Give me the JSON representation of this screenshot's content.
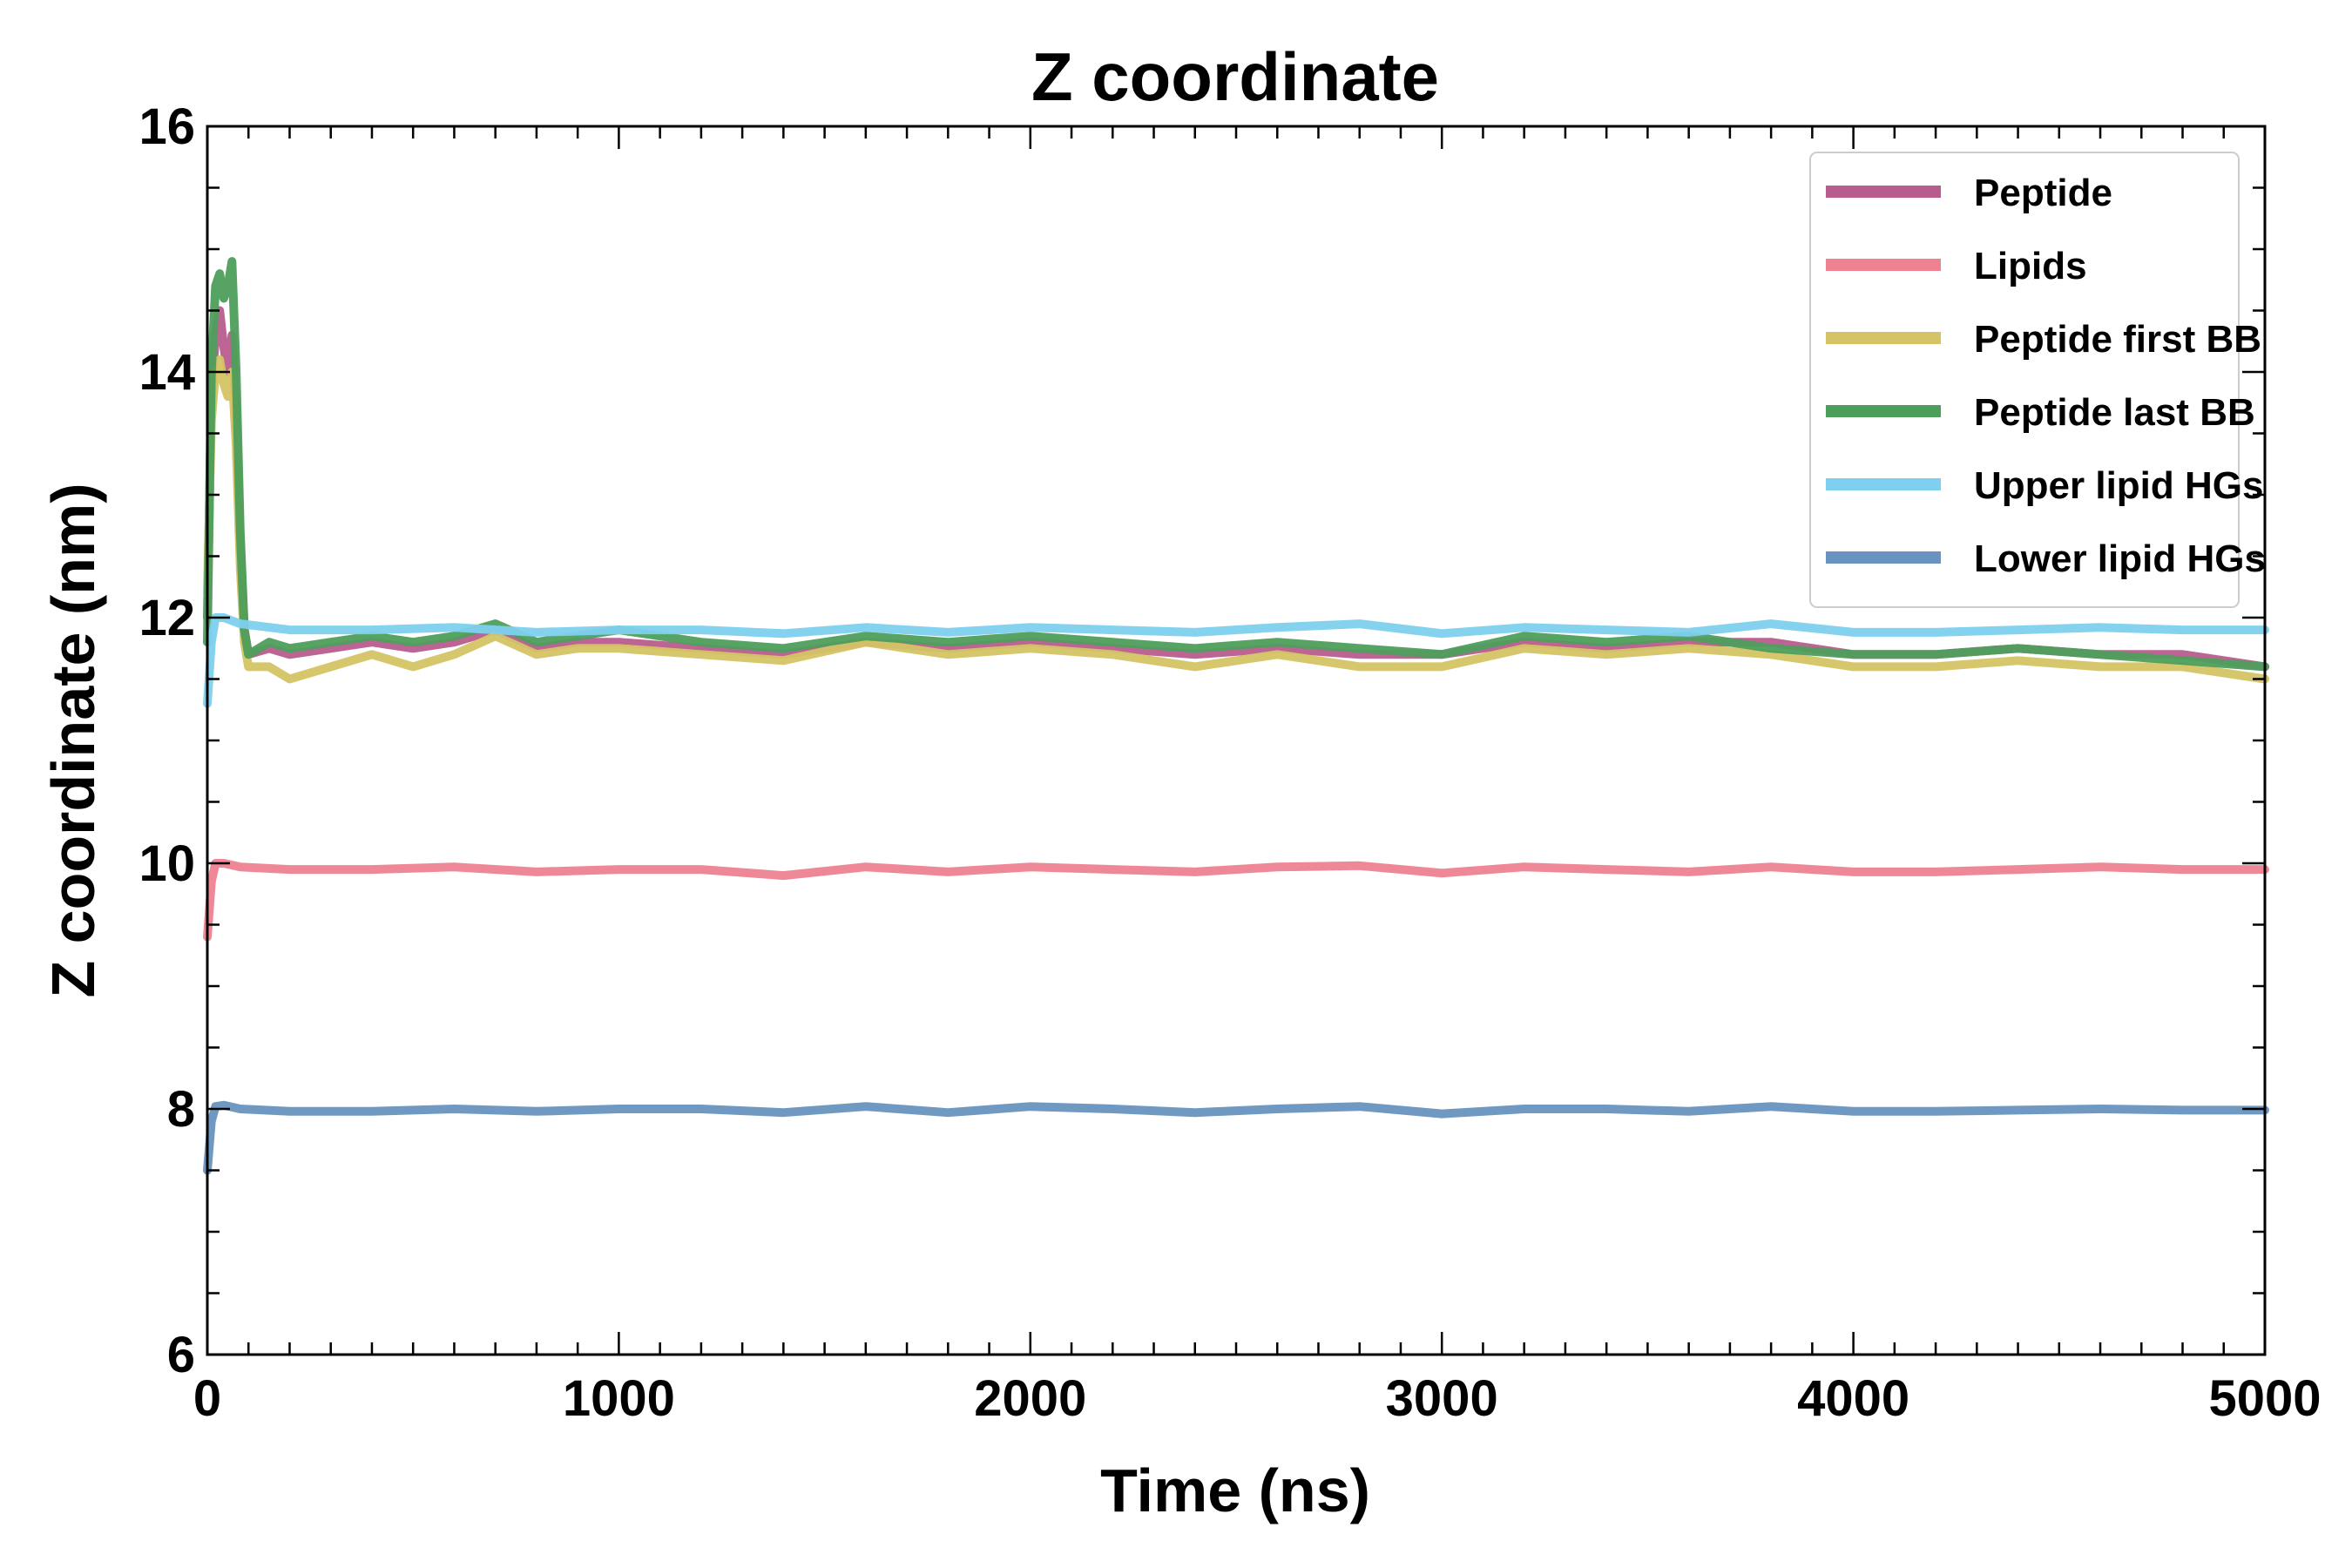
{
  "chart_data": {
    "type": "line",
    "title": "Z coordinate",
    "xlabel": "Time (ns)",
    "ylabel": "Z coordinate (nm)",
    "xlim": [
      0,
      5000
    ],
    "ylim": [
      6,
      16
    ],
    "xticks": [
      0,
      1000,
      2000,
      3000,
      4000,
      5000
    ],
    "yticks": [
      6,
      8,
      10,
      12,
      14,
      16
    ],
    "grid": false,
    "legend_position": "top-right",
    "series": [
      {
        "name": "Peptide",
        "color": "#b85c8e",
        "x": [
          0,
          10,
          20,
          30,
          40,
          50,
          60,
          70,
          80,
          90,
          100,
          150,
          200,
          300,
          400,
          500,
          600,
          700,
          800,
          900,
          1000,
          1200,
          1400,
          1600,
          1800,
          2000,
          2200,
          2400,
          2600,
          2800,
          3000,
          3200,
          3400,
          3600,
          3800,
          4000,
          4200,
          4400,
          4600,
          4800,
          5000
        ],
        "y": [
          12.0,
          13.8,
          14.3,
          14.5,
          14.2,
          14.0,
          14.3,
          13.6,
          12.6,
          11.9,
          11.7,
          11.75,
          11.7,
          11.75,
          11.8,
          11.75,
          11.8,
          11.9,
          11.75,
          11.8,
          11.8,
          11.75,
          11.7,
          11.8,
          11.75,
          11.8,
          11.75,
          11.7,
          11.75,
          11.7,
          11.7,
          11.8,
          11.75,
          11.8,
          11.8,
          11.7,
          11.7,
          11.75,
          11.7,
          11.7,
          11.6
        ]
      },
      {
        "name": "Lipids",
        "color": "#ee8290",
        "x": [
          0,
          10,
          20,
          40,
          80,
          200,
          400,
          600,
          800,
          1000,
          1200,
          1400,
          1600,
          1800,
          2000,
          2200,
          2400,
          2600,
          2800,
          3000,
          3200,
          3400,
          3600,
          3800,
          4000,
          4200,
          4400,
          4600,
          4800,
          5000
        ],
        "y": [
          9.4,
          9.85,
          10.0,
          10.0,
          9.97,
          9.95,
          9.95,
          9.97,
          9.93,
          9.95,
          9.95,
          9.9,
          9.97,
          9.93,
          9.97,
          9.95,
          9.93,
          9.97,
          9.98,
          9.92,
          9.97,
          9.95,
          9.93,
          9.97,
          9.93,
          9.93,
          9.95,
          9.97,
          9.95,
          9.95
        ]
      },
      {
        "name": "Peptide first BB",
        "color": "#d4c465",
        "x": [
          0,
          10,
          20,
          30,
          40,
          50,
          60,
          70,
          80,
          90,
          100,
          150,
          200,
          300,
          400,
          500,
          600,
          700,
          800,
          900,
          1000,
          1200,
          1400,
          1600,
          1800,
          2000,
          2200,
          2400,
          2600,
          2800,
          3000,
          3200,
          3400,
          3600,
          3800,
          4000,
          4200,
          4400,
          4600,
          4800,
          5000
        ],
        "y": [
          12.2,
          13.6,
          14.0,
          14.1,
          13.9,
          13.8,
          14.0,
          13.4,
          12.4,
          11.8,
          11.6,
          11.6,
          11.5,
          11.6,
          11.7,
          11.6,
          11.7,
          11.85,
          11.7,
          11.75,
          11.75,
          11.7,
          11.65,
          11.8,
          11.7,
          11.75,
          11.7,
          11.6,
          11.7,
          11.6,
          11.6,
          11.75,
          11.7,
          11.75,
          11.7,
          11.6,
          11.6,
          11.65,
          11.6,
          11.6,
          11.5
        ]
      },
      {
        "name": "Peptide last BB",
        "color": "#4d9e5b",
        "x": [
          0,
          10,
          20,
          30,
          40,
          50,
          60,
          70,
          80,
          90,
          100,
          150,
          200,
          300,
          400,
          500,
          600,
          700,
          800,
          900,
          1000,
          1200,
          1400,
          1600,
          1800,
          2000,
          2200,
          2400,
          2600,
          2800,
          3000,
          3200,
          3400,
          3600,
          3800,
          4000,
          4200,
          4400,
          4600,
          4800,
          5000
        ],
        "y": [
          11.8,
          14.0,
          14.7,
          14.8,
          14.6,
          14.7,
          14.9,
          14.0,
          12.7,
          11.9,
          11.7,
          11.8,
          11.75,
          11.8,
          11.85,
          11.8,
          11.85,
          11.95,
          11.8,
          11.85,
          11.9,
          11.8,
          11.75,
          11.85,
          11.8,
          11.85,
          11.8,
          11.75,
          11.8,
          11.75,
          11.7,
          11.85,
          11.8,
          11.85,
          11.75,
          11.7,
          11.7,
          11.75,
          11.7,
          11.65,
          11.6
        ]
      },
      {
        "name": "Upper lipid HGs",
        "color": "#7ed0ee",
        "x": [
          0,
          10,
          20,
          40,
          80,
          200,
          400,
          600,
          800,
          1000,
          1200,
          1400,
          1600,
          1800,
          2000,
          2200,
          2400,
          2600,
          2800,
          3000,
          3200,
          3400,
          3600,
          3800,
          4000,
          4200,
          4400,
          4600,
          4800,
          5000
        ],
        "y": [
          11.3,
          11.8,
          12.0,
          12.0,
          11.95,
          11.9,
          11.9,
          11.92,
          11.88,
          11.9,
          11.9,
          11.87,
          11.92,
          11.88,
          11.92,
          11.9,
          11.88,
          11.92,
          11.95,
          11.87,
          11.92,
          11.9,
          11.88,
          11.95,
          11.88,
          11.88,
          11.9,
          11.92,
          11.9,
          11.9
        ]
      },
      {
        "name": "Lower lipid HGs",
        "color": "#6893be",
        "x": [
          0,
          10,
          20,
          40,
          80,
          200,
          400,
          600,
          800,
          1000,
          1200,
          1400,
          1600,
          1800,
          2000,
          2200,
          2400,
          2600,
          2800,
          3000,
          3200,
          3400,
          3600,
          3800,
          4000,
          4200,
          4400,
          4600,
          4800,
          5000
        ],
        "y": [
          7.5,
          7.9,
          8.02,
          8.03,
          8.0,
          7.98,
          7.98,
          8.0,
          7.98,
          8.0,
          8.0,
          7.97,
          8.02,
          7.97,
          8.02,
          8.0,
          7.97,
          8.0,
          8.02,
          7.96,
          8.0,
          8.0,
          7.98,
          8.02,
          7.98,
          7.98,
          7.99,
          8.0,
          7.99,
          7.99
        ]
      }
    ]
  }
}
